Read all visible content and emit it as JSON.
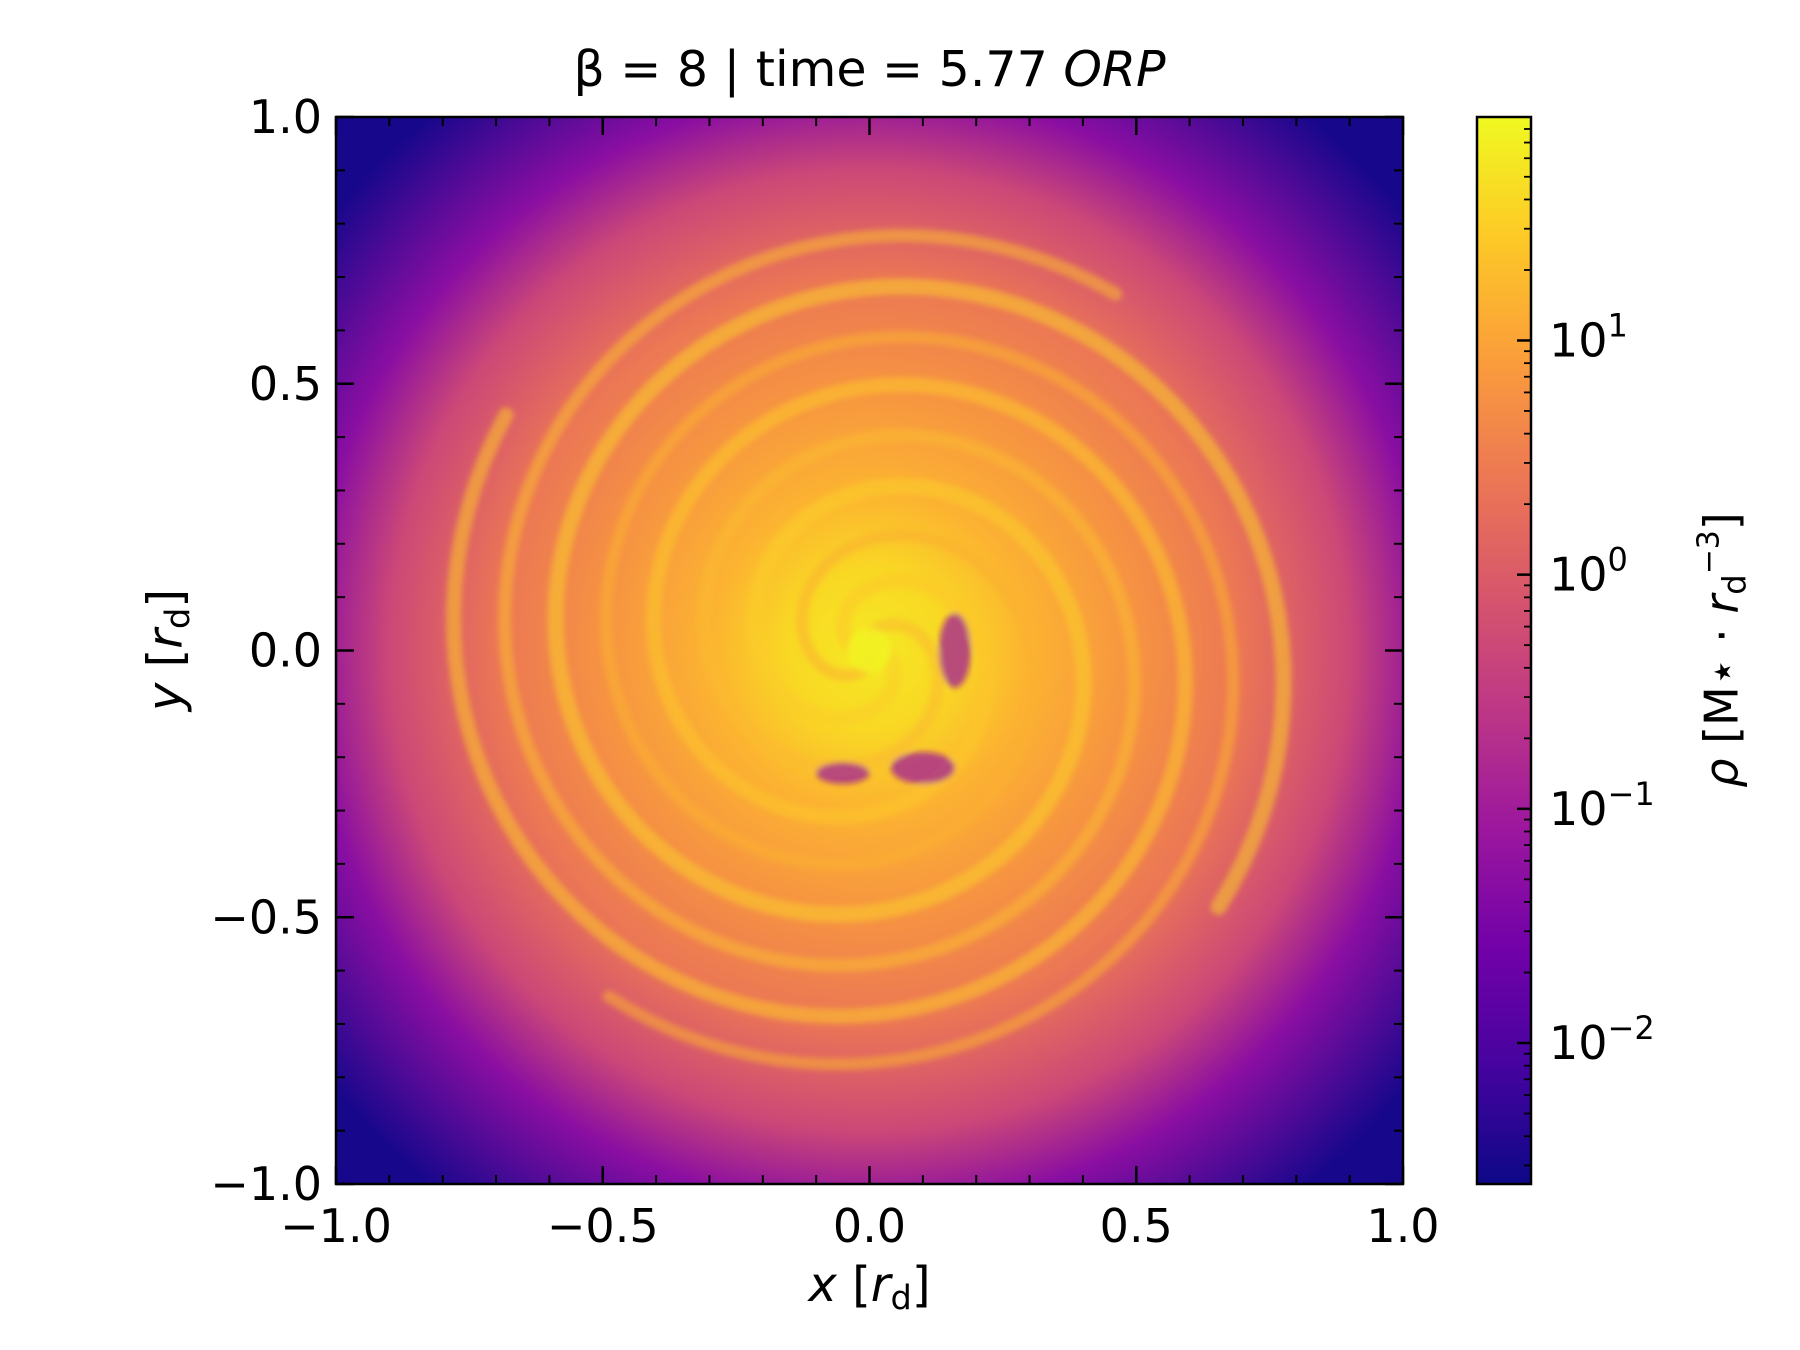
{
  "figure": {
    "title_prefix": "β = 8 | time = 5.77 ",
    "title_italic": "ORP"
  },
  "chart_data": {
    "type": "heatmap",
    "title": "β = 8 | time = 5.77 ORP",
    "xlabel": {
      "var": "x",
      "open": "[",
      "unit": "r",
      "sub": "d",
      "close": "]"
    },
    "ylabel": {
      "var": "y",
      "open": "[",
      "unit": "r",
      "sub": "d",
      "close": "]"
    },
    "xlim": [
      -1.0,
      1.0
    ],
    "ylim": [
      -1.0,
      1.0
    ],
    "x_ticks": [
      "−1.0",
      "−0.5",
      "0.0",
      "0.5",
      "1.0"
    ],
    "y_ticks": [
      "−1.0",
      "−0.5",
      "0.0",
      "0.5",
      "1.0"
    ],
    "x_tick_values": [
      -1.0,
      -0.5,
      0.0,
      0.5,
      1.0
    ],
    "y_tick_values": [
      -1.0,
      -0.5,
      0.0,
      0.5,
      1.0
    ],
    "minor_tick_step": 0.1,
    "grid": false,
    "colormap": "plasma",
    "colorbar": {
      "scale": "log",
      "range": [
        0.0025,
        90
      ],
      "label": {
        "var": "ρ",
        "text": " [M⋆ · ",
        "unit": "r",
        "sub": "d",
        "sup": "−3",
        "close": "]"
      },
      "ticks": [
        {
          "value": 10,
          "base": "10",
          "exp": "1"
        },
        {
          "value": 1,
          "base": "10",
          "exp": "0"
        },
        {
          "value": 0.1,
          "base": "10",
          "exp": "−1"
        },
        {
          "value": 0.01,
          "base": "10",
          "exp": "−2"
        }
      ]
    },
    "field_description": "gas density ρ in a disc, log-scaled; spiral arms wind inward to a bright core at (0, 0)",
    "density_stops": [
      {
        "r": 0.0,
        "rho": 60
      },
      {
        "r": 0.15,
        "rho": 40
      },
      {
        "r": 0.3,
        "rho": 15
      },
      {
        "r": 0.5,
        "rho": 6
      },
      {
        "r": 0.7,
        "rho": 2.5
      },
      {
        "r": 0.9,
        "rho": 0.5
      },
      {
        "r": 1.05,
        "rho": 0.05
      },
      {
        "r": 1.3,
        "rho": 0.003
      }
    ],
    "colors": {
      "stops": [
        "#0d0887",
        "#46039f",
        "#7201a8",
        "#9c179e",
        "#bd3786",
        "#d8576b",
        "#ed7953",
        "#fb9f3a",
        "#fdca26",
        "#f0f921"
      ]
    }
  }
}
